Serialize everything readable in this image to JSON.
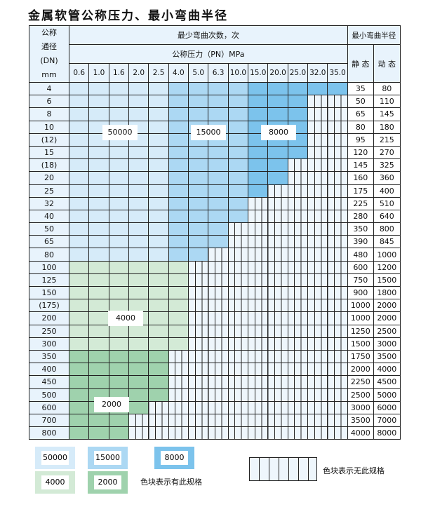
{
  "title": "金属软管公称压力、最小弯曲半径",
  "chart_data": {
    "type": "table",
    "header": {
      "dn": [
        "公称",
        "通径",
        "(DN)",
        "mm"
      ],
      "bend_count": "最少弯曲次数，次",
      "pressure": "公称压力（PN）MPa",
      "radius": "最小弯曲半径",
      "static": "静 态",
      "dynamic": "动 态"
    },
    "pressures": [
      "0.6",
      "1.0",
      "1.6",
      "2.0",
      "2.5",
      "4.0",
      "5.0",
      "6.3",
      "10.0",
      "15.0",
      "20.0",
      "25.0",
      "32.0",
      "35.0"
    ],
    "levels": {
      "A": "50000",
      "B": "15000",
      "C": "8000",
      "D": "4000",
      "E": "2000"
    },
    "colors": {
      "A": "#d6ebf9",
      "B": "#acd8f3",
      "C": "#7cc3ec",
      "D": "#d3ead6",
      "E": "#9fd2ad"
    },
    "rows": [
      {
        "dn": "4",
        "cells": "AAAAABBBBCCCCC",
        "static": "35",
        "dynamic": "80"
      },
      {
        "dn": "6",
        "cells": "AAAAABBBBCCC",
        "static": "50",
        "dynamic": "110"
      },
      {
        "dn": "8",
        "cells": "AAAAABBBBCCC",
        "static": "65",
        "dynamic": "145"
      },
      {
        "dn": "10",
        "cells": "AAAAABBBBCCC",
        "static": "80",
        "dynamic": "180"
      },
      {
        "dn": "(12)",
        "cells": "AAAAABBBBCCC",
        "static": "95",
        "dynamic": "215"
      },
      {
        "dn": "15",
        "cells": "AAAAABBBBCCC",
        "static": "120",
        "dynamic": "270"
      },
      {
        "dn": "(18)",
        "cells": "AAAAABBBBCC",
        "static": "145",
        "dynamic": "325"
      },
      {
        "dn": "20",
        "cells": "AAAAABBBBCC",
        "static": "160",
        "dynamic": "360"
      },
      {
        "dn": "25",
        "cells": "AAAAABBBBC",
        "static": "175",
        "dynamic": "400"
      },
      {
        "dn": "32",
        "cells": "AAAAABBBB",
        "static": "225",
        "dynamic": "510"
      },
      {
        "dn": "40",
        "cells": "AAAAABBBB",
        "static": "280",
        "dynamic": "640"
      },
      {
        "dn": "50",
        "cells": "AAAAABBB",
        "static": "350",
        "dynamic": "800"
      },
      {
        "dn": "65",
        "cells": "AAAAABBB",
        "static": "390",
        "dynamic": "845"
      },
      {
        "dn": "80",
        "cells": "AAAAABB",
        "static": "480",
        "dynamic": "1000"
      },
      {
        "dn": "100",
        "cells": "DDDDDD",
        "static": "600",
        "dynamic": "1200"
      },
      {
        "dn": "125",
        "cells": "DDDDDD",
        "static": "750",
        "dynamic": "1500"
      },
      {
        "dn": "150",
        "cells": "DDDDDD",
        "static": "900",
        "dynamic": "1800"
      },
      {
        "dn": "(175)",
        "cells": "DDDDDD",
        "static": "1000",
        "dynamic": "2000"
      },
      {
        "dn": "200",
        "cells": "DDDDDD",
        "static": "1000",
        "dynamic": "2000"
      },
      {
        "dn": "250",
        "cells": "DDDDDD",
        "static": "1250",
        "dynamic": "2500"
      },
      {
        "dn": "300",
        "cells": "DDDDDD",
        "static": "1500",
        "dynamic": "3000"
      },
      {
        "dn": "350",
        "cells": "EEEEE",
        "static": "1750",
        "dynamic": "3500"
      },
      {
        "dn": "400",
        "cells": "EEEEE",
        "static": "2000",
        "dynamic": "4000"
      },
      {
        "dn": "450",
        "cells": "EEEEE",
        "static": "2250",
        "dynamic": "4500"
      },
      {
        "dn": "500",
        "cells": "EEEEE",
        "static": "2500",
        "dynamic": "5000"
      },
      {
        "dn": "600",
        "cells": "EEEE",
        "static": "3000",
        "dynamic": "6000"
      },
      {
        "dn": "700",
        "cells": "EEE",
        "static": "3500",
        "dynamic": "7000"
      },
      {
        "dn": "800",
        "cells": "EEE",
        "static": "4000",
        "dynamic": "8000"
      }
    ],
    "region_labels": {
      "a": "50000",
      "b": "15000",
      "c": "8000",
      "d": "4000",
      "e": "2000"
    }
  },
  "legend": {
    "a": "50000",
    "b": "15000",
    "c": "8000",
    "d": "4000",
    "e": "2000",
    "has_spec": "色块表示有此规格",
    "no_spec": "色块表示无此规格"
  }
}
